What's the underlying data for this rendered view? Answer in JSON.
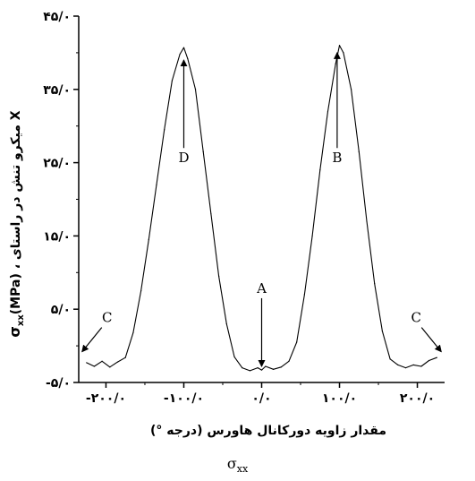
{
  "chart_data": {
    "type": "line",
    "xlabel": "مقدار زاویه دورکانال هاورس (درجه °)",
    "ylabel": "σxx(MPa) ، میکرو تنش در راستای X",
    "ylabel_sigma": "σ",
    "ylabel_sub": "xx",
    "ylabel_rest": "(MPa) ، میکرو تنش در راستای X",
    "xlim": [
      -235,
      235
    ],
    "ylim": [
      -5,
      45
    ],
    "xticks": [
      -200,
      -100,
      0,
      100,
      200
    ],
    "xtick_labels": [
      "-۲۰۰/۰",
      "-۱۰۰/۰",
      "۰/۰",
      "۱۰۰/۰",
      "۲۰۰/۰"
    ],
    "yticks": [
      -5,
      5,
      15,
      25,
      35,
      45
    ],
    "ytick_labels": [
      "-۵/۰",
      "۵/۰",
      "۱۵/۰",
      "۲۵/۰",
      "۳۵/۰",
      "۴۵/۰"
    ],
    "grid": false,
    "series": [
      {
        "color": "#000000",
        "x": [
          -225,
          -215,
          -205,
          -195,
          -185,
          -175,
          -165,
          -155,
          -145,
          -135,
          -125,
          -115,
          -105,
          -100,
          -95,
          -85,
          -75,
          -65,
          -55,
          -45,
          -35,
          -25,
          -15,
          -5,
          0,
          5,
          15,
          25,
          35,
          45,
          55,
          65,
          75,
          85,
          95,
          100,
          105,
          115,
          125,
          135,
          145,
          155,
          165,
          175,
          185,
          195,
          205,
          215,
          225
        ],
        "y": [
          -2.3,
          -2.8,
          -2.1,
          -2.9,
          -2.2,
          -1.6,
          1.8,
          7.5,
          14.5,
          22.0,
          29.5,
          36.2,
          39.8,
          40.7,
          39.2,
          35.0,
          26.5,
          18.0,
          9.5,
          3.0,
          -1.5,
          -3.0,
          -3.4,
          -3.0,
          -3.3,
          -2.8,
          -3.2,
          -2.9,
          -2.1,
          0.5,
          7.0,
          15.0,
          24.0,
          32.0,
          38.5,
          41.0,
          40.0,
          35.0,
          26.5,
          17.0,
          8.5,
          2.0,
          -1.8,
          -2.6,
          -3.0,
          -2.6,
          -2.8,
          -2.0,
          -1.6
        ]
      }
    ],
    "annotations": [
      {
        "label": "A",
        "x": 0,
        "y_from": 6.5,
        "y_to": -2.8
      },
      {
        "label": "B",
        "x": 97,
        "y_from": 27.0,
        "y_to": 40.0
      },
      {
        "label": "C",
        "x": -210,
        "y_from": 2.5,
        "y_to": -0.8
      },
      {
        "label": "C",
        "x": 210,
        "y_from": 2.5,
        "y_to": -0.8
      },
      {
        "label": "D",
        "x": -100,
        "y_from": 27.0,
        "y_to": 39.0
      }
    ]
  },
  "caption": {
    "symbol": "σ",
    "subscript": "xx"
  }
}
